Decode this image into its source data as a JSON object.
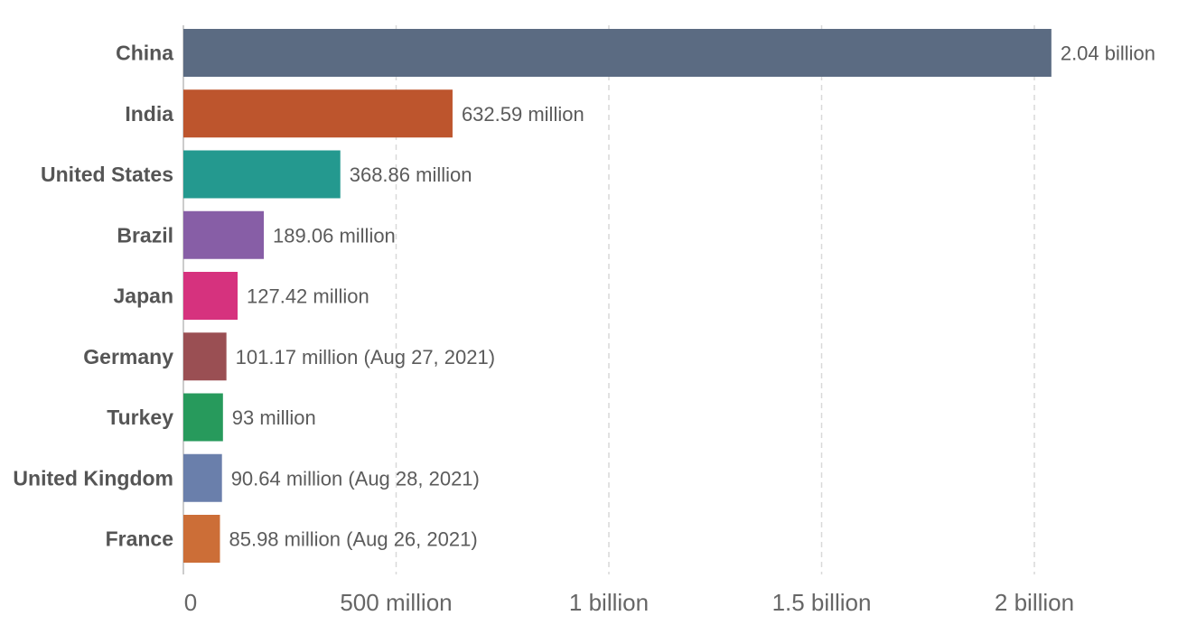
{
  "chart_data": {
    "type": "bar",
    "orientation": "horizontal",
    "title": "",
    "xlabel": "",
    "ylabel": "",
    "xlim": [
      0,
      2000000000
    ],
    "grid": true,
    "categories": [
      "China",
      "India",
      "United States",
      "Brazil",
      "Japan",
      "Germany",
      "Turkey",
      "United Kingdom",
      "France"
    ],
    "values": [
      2040000000,
      632590000,
      368860000,
      189060000,
      127420000,
      101170000,
      93000000,
      90640000,
      85980000
    ],
    "value_labels": [
      "2.04 billion",
      "632.59 million",
      "368.86 million",
      "189.06 million",
      "127.42 million",
      "101.17 million (Aug 27, 2021)",
      "93 million",
      "90.64 million (Aug 28, 2021)",
      "85.98 million (Aug 26, 2021)"
    ],
    "colors": [
      "#5b6b82",
      "#bd552d",
      "#24998f",
      "#875ea6",
      "#d6327e",
      "#9a4f53",
      "#279a5c",
      "#6a7fab",
      "#cc6e37"
    ],
    "ticks": [
      0,
      500000000,
      1000000000,
      1500000000,
      2000000000
    ],
    "tick_labels": [
      "0",
      "500 million",
      "1 billion",
      "1.5 billion",
      "2 billion"
    ]
  }
}
